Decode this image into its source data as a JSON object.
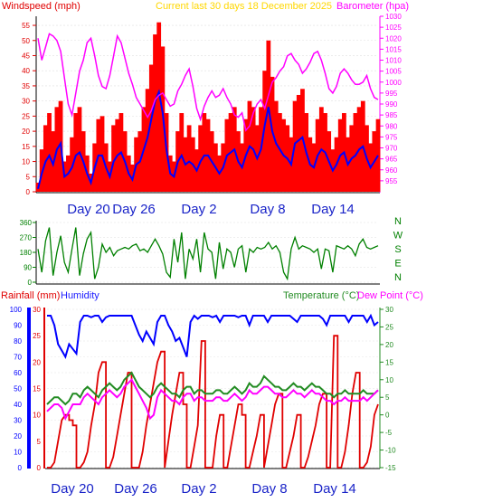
{
  "colors": {
    "wind_speed": "#ff0000",
    "wind_avg": "#0000ff",
    "barometer": "#ff00ff",
    "direction": "#008000",
    "rain": "#e00000",
    "humidity": "#0000ff",
    "temperature": "#228b22",
    "dewpoint": "#ff00ff",
    "title": "#ffd700",
    "day_label": "#1a24c8",
    "dir_letters": "#008000"
  },
  "header_top": {
    "windspeed": "Windspeed (mph)",
    "current": "Current last 30 days 18 December 2025",
    "barometer": "Barometer (hpa)"
  },
  "header_bottom": {
    "rainfall": "Rainfall (mm)",
    "humidity": "Humidity",
    "temperature": "Temperature (°C)",
    "dewpoint": "Dew Point (°C)"
  },
  "direction_letters": [
    "N",
    "W",
    "S",
    "E",
    "N"
  ],
  "chart_data": [
    {
      "type": "line",
      "name": "wind-and-pressure",
      "x_labels": [
        "Day 20",
        "Day 26",
        "Day 2",
        "Day 8",
        "Day 14"
      ],
      "y_left_ticks": [
        0,
        5,
        10,
        15,
        20,
        25,
        30,
        35,
        40,
        45,
        50,
        55
      ],
      "y_right_ticks": [
        955,
        960,
        965,
        970,
        975,
        980,
        985,
        990,
        995,
        1000,
        1005,
        1010,
        1015,
        1020,
        1025,
        1030
      ],
      "ylim_left": [
        0,
        58
      ],
      "ylim_right": [
        950,
        1030
      ],
      "series": [
        {
          "name": "Windspeed",
          "axis": "left",
          "values": [
            3,
            14,
            22,
            26,
            20,
            28,
            30,
            10,
            12,
            18,
            26,
            28,
            20,
            12,
            6,
            16,
            24,
            25,
            16,
            10,
            22,
            24,
            26,
            20,
            12,
            9,
            18,
            20,
            28,
            34,
            42,
            52,
            56,
            48,
            26,
            12,
            10,
            20,
            26,
            18,
            22,
            18,
            14,
            22,
            26,
            24,
            20,
            16,
            12,
            16,
            24,
            26,
            28,
            20,
            16,
            24,
            30,
            28,
            22,
            28,
            40,
            50,
            38,
            30,
            26,
            24,
            22,
            18,
            30,
            32,
            34,
            26,
            18,
            16,
            24,
            28,
            26,
            20,
            14,
            18,
            24,
            26,
            18,
            22,
            26,
            28,
            30,
            22,
            16,
            20,
            24
          ]
        },
        {
          "name": "Average",
          "axis": "left",
          "values": [
            1,
            6,
            10,
            12,
            9,
            14,
            16,
            5,
            6,
            8,
            12,
            13,
            10,
            6,
            3,
            8,
            12,
            12,
            8,
            5,
            10,
            12,
            13,
            10,
            6,
            4,
            9,
            10,
            14,
            18,
            24,
            30,
            33,
            26,
            14,
            6,
            5,
            10,
            12,
            9,
            10,
            9,
            7,
            10,
            12,
            12,
            10,
            8,
            6,
            8,
            12,
            13,
            14,
            10,
            8,
            12,
            15,
            14,
            11,
            14,
            22,
            28,
            20,
            16,
            14,
            12,
            11,
            9,
            16,
            17,
            18,
            13,
            9,
            8,
            12,
            14,
            13,
            10,
            7,
            9,
            12,
            13,
            9,
            11,
            12,
            14,
            15,
            11,
            8,
            10,
            12
          ]
        },
        {
          "name": "Barometer",
          "axis": "right",
          "values": [
            1020,
            1010,
            1016,
            1022,
            1021,
            1019,
            1014,
            1002,
            990,
            985,
            995,
            1005,
            1010,
            1018,
            1020,
            1012,
            1003,
            998,
            997,
            1003,
            1012,
            1021,
            1018,
            1011,
            1004,
            999,
            993,
            990,
            987,
            984,
            987,
            992,
            994,
            995,
            992,
            989,
            990,
            996,
            999,
            1003,
            1006,
            998,
            988,
            983,
            989,
            993,
            996,
            993,
            994,
            997,
            993,
            990,
            985,
            984,
            986,
            978,
            980,
            986,
            990,
            992,
            988,
            994,
            1000,
            1002,
            1005,
            1007,
            1012,
            1013,
            1010,
            1008,
            1004,
            1006,
            1009,
            1013,
            1014,
            1010,
            1004,
            997,
            995,
            998,
            1004,
            1006,
            1004,
            1001,
            999,
            999,
            1000,
            1003,
            997,
            993,
            992
          ]
        }
      ]
    },
    {
      "type": "scatter",
      "name": "wind-direction",
      "y_ticks": [
        0,
        90,
        180,
        270,
        360
      ],
      "ylim": [
        0,
        360
      ],
      "series": [
        {
          "name": "Direction",
          "values": [
            200,
            60,
            250,
            330,
            40,
            180,
            280,
            120,
            60,
            200,
            330,
            40,
            170,
            260,
            300,
            20,
            90,
            230,
            180,
            210,
            160,
            190,
            200,
            210,
            200,
            220,
            230,
            190,
            200,
            180,
            220,
            260,
            220,
            170,
            60,
            30,
            260,
            120,
            300,
            20,
            200,
            140,
            260,
            60,
            300,
            200,
            180,
            20,
            240,
            80,
            200,
            180,
            90,
            200,
            220,
            60,
            200,
            180,
            210,
            200,
            210,
            240,
            200,
            220,
            180,
            60,
            20,
            200,
            270,
            200,
            220,
            210,
            200,
            180,
            200,
            80,
            200,
            190,
            60,
            220,
            210,
            200,
            220,
            200,
            160,
            230,
            260,
            210,
            200,
            210,
            220
          ]
        }
      ]
    },
    {
      "type": "line",
      "name": "rain-humidity-temperature",
      "x_labels": [
        "Day 20",
        "Day 26",
        "Day 2",
        "Day 8",
        "Day 14"
      ],
      "y_humidity_ticks": [
        0,
        10,
        20,
        30,
        40,
        50,
        60,
        70,
        80,
        90,
        100
      ],
      "y_rain_ticks": [
        0,
        5,
        10,
        15,
        20,
        25,
        30
      ],
      "y_temp_ticks": [
        -15,
        -10,
        -5,
        0,
        5,
        10,
        15,
        20,
        25,
        30
      ],
      "ylim_rain": [
        0,
        30
      ],
      "ylim_temp": [
        -15,
        30
      ],
      "series": [
        {
          "name": "Humidity",
          "axis": "rain-humidity",
          "values": [
            96,
            96,
            90,
            78,
            74,
            70,
            78,
            75,
            72,
            92,
            96,
            96,
            95,
            96,
            96,
            92,
            95,
            96,
            96,
            96,
            96,
            96,
            96,
            96,
            90,
            84,
            80,
            86,
            82,
            78,
            92,
            96,
            96,
            90,
            86,
            80,
            82,
            76,
            70,
            92,
            96,
            94,
            96,
            96,
            96,
            95,
            96,
            92,
            96,
            96,
            96,
            96,
            95,
            96,
            96,
            90,
            96,
            96,
            96,
            96,
            92,
            96,
            96,
            96,
            96,
            96,
            96,
            94,
            92,
            96,
            96,
            96,
            96,
            96,
            96,
            94,
            90,
            96,
            96,
            96,
            96,
            96,
            92,
            96,
            96,
            96,
            96,
            92,
            96,
            90,
            92
          ]
        },
        {
          "name": "Rainfall",
          "axis": "rain-humidity",
          "values": [
            0,
            0,
            1,
            5,
            9,
            10,
            9,
            8,
            0,
            0,
            1,
            3,
            8,
            12,
            18,
            20,
            0,
            0,
            2,
            6,
            10,
            14,
            18,
            0,
            0,
            0,
            3,
            8,
            12,
            16,
            20,
            22,
            0,
            5,
            10,
            14,
            18,
            12,
            0,
            0,
            4,
            8,
            24,
            0,
            0,
            0,
            6,
            10,
            0,
            0,
            4,
            8,
            12,
            10,
            0,
            0,
            3,
            6,
            10,
            0,
            4,
            8,
            12,
            14,
            0,
            0,
            3,
            6,
            10,
            0,
            0,
            2,
            5,
            8,
            12,
            14,
            0,
            0,
            25,
            0,
            0,
            3,
            8,
            14,
            18,
            0,
            0,
            1,
            4,
            10,
            12
          ]
        },
        {
          "name": "Temperature",
          "axis": "temp",
          "values": [
            3,
            4,
            5,
            5,
            4,
            3,
            4,
            6,
            6,
            5,
            7,
            8,
            7,
            6,
            5,
            7,
            8,
            9,
            8,
            7,
            8,
            10,
            11,
            12,
            10,
            8,
            7,
            6,
            5,
            6,
            8,
            9,
            8,
            7,
            6,
            6,
            5,
            7,
            8,
            8,
            6,
            7,
            7,
            6,
            6,
            6,
            7,
            7,
            6,
            6,
            7,
            8,
            7,
            6,
            7,
            9,
            8,
            8,
            9,
            11,
            10,
            9,
            8,
            8,
            7,
            7,
            8,
            9,
            8,
            8,
            7,
            8,
            9,
            8,
            8,
            7,
            6,
            6,
            5,
            6,
            6,
            7,
            6,
            6,
            6,
            6,
            7,
            6,
            6,
            6,
            7
          ]
        },
        {
          "name": "Dew Point",
          "axis": "temp",
          "values": [
            1,
            2,
            3,
            3,
            2,
            -1,
            1,
            3,
            3,
            3,
            5,
            6,
            5,
            4,
            3,
            5,
            6,
            7,
            6,
            5,
            6,
            8,
            9,
            10,
            8,
            6,
            4,
            2,
            -1,
            0,
            5,
            7,
            6,
            5,
            4,
            4,
            3,
            5,
            6,
            6,
            4,
            5,
            5,
            4,
            4,
            4,
            5,
            5,
            4,
            4,
            5,
            6,
            5,
            4,
            5,
            7,
            6,
            6,
            7,
            8,
            8,
            7,
            6,
            6,
            5,
            5,
            6,
            7,
            6,
            6,
            5,
            6,
            7,
            6,
            6,
            5,
            4,
            4,
            3,
            4,
            4,
            5,
            4,
            4,
            4,
            4,
            5,
            4,
            5,
            6,
            7
          ]
        }
      ]
    }
  ]
}
